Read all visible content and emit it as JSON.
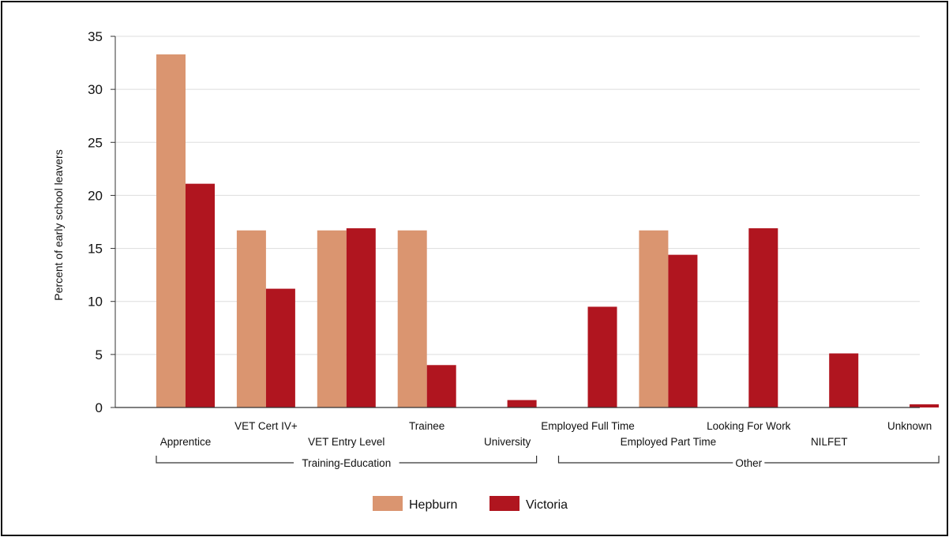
{
  "chart_data": {
    "type": "bar",
    "title": "",
    "ylabel": "Percent of early school leavers",
    "xlabel": "",
    "ylim": [
      0,
      35
    ],
    "yticks": [
      0,
      5,
      10,
      15,
      20,
      25,
      30,
      35
    ],
    "grid": true,
    "categories": [
      "Apprentice",
      "VET Cert IV+",
      "VET Entry Level",
      "Trainee",
      "University",
      "Employed Full Time",
      "Employed Part Time",
      "Looking For Work",
      "NILFET",
      "Unknown"
    ],
    "groups": [
      {
        "label": "Training-Education",
        "categories": [
          "Apprentice",
          "VET Cert IV+",
          "VET Entry Level",
          "Trainee",
          "University"
        ]
      },
      {
        "label": "Other",
        "categories": [
          "Employed Full Time",
          "Employed Part Time",
          "Looking For Work",
          "NILFET",
          "Unknown"
        ]
      }
    ],
    "series": [
      {
        "name": "Hepburn",
        "color": "#DA9570",
        "values": [
          33.3,
          16.7,
          16.7,
          16.7,
          0,
          0,
          16.7,
          0,
          0,
          0
        ]
      },
      {
        "name": "Victoria",
        "color": "#B0151F",
        "values": [
          21.1,
          11.2,
          16.9,
          4.0,
          0.7,
          9.5,
          14.4,
          16.9,
          5.1,
          0.3
        ]
      }
    ],
    "legend_position": "bottom"
  }
}
